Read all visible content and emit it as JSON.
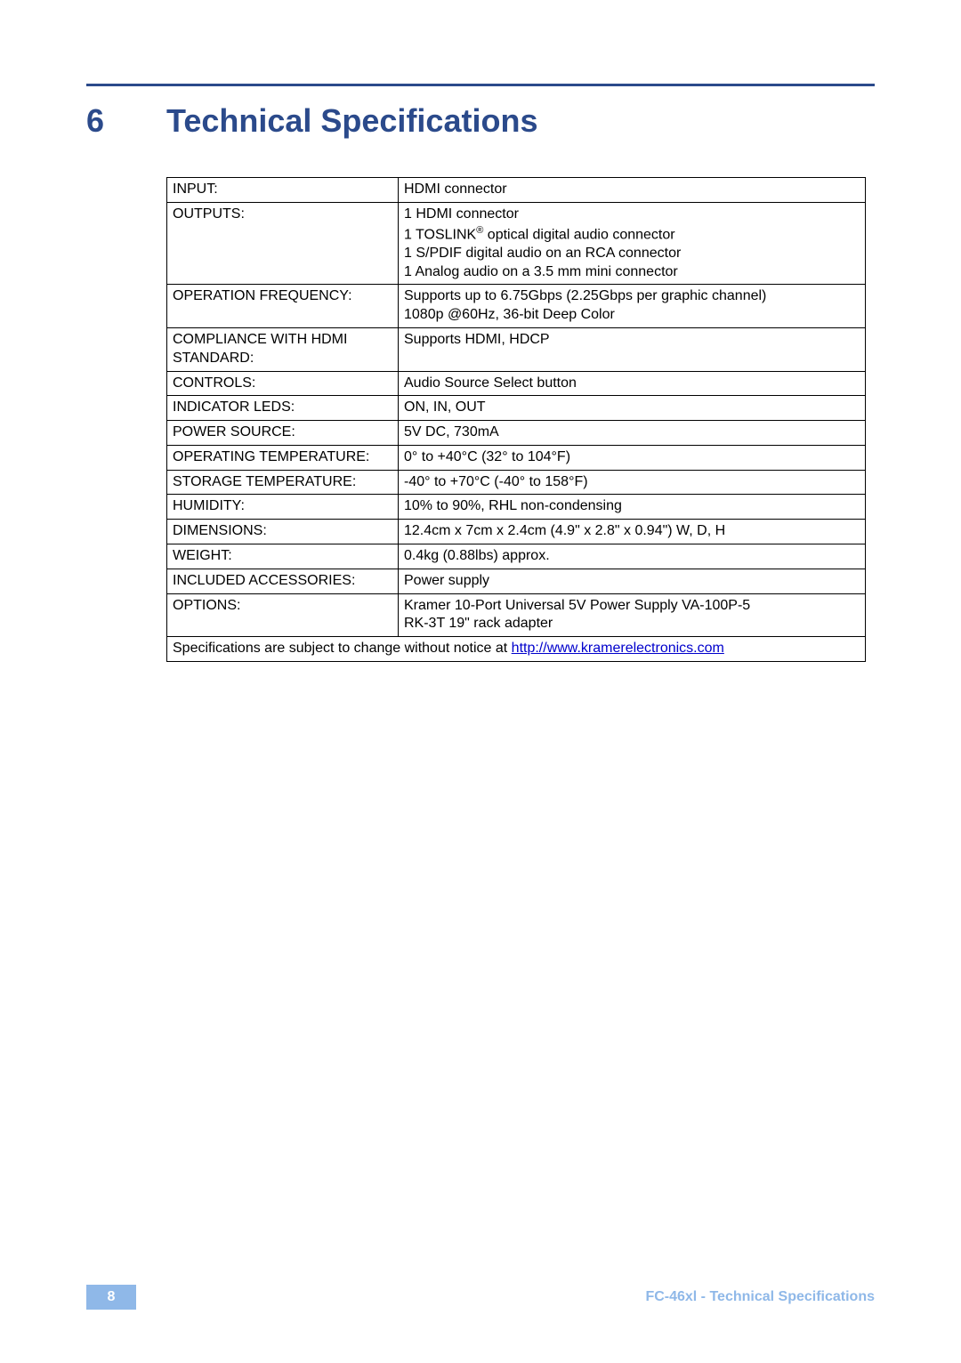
{
  "colors": {
    "rule": "#2b4a8b",
    "heading": "#2b4a8b",
    "link": "#0000cc",
    "badge_bg": "#8fb8e8",
    "footer_text": "#8fb8e8"
  },
  "section": {
    "number": "6",
    "title": "Technical Specifications"
  },
  "table": {
    "rows": [
      {
        "label": "INPUT:",
        "value": "HDMI connector"
      },
      {
        "label": "OUTPUTS:",
        "value_lines": [
          "1 HDMI connector",
          "1 TOSLINK<sup>®</sup> optical digital audio connector",
          "1 S/PDIF digital audio on an RCA connector",
          "1 Analog audio on a 3.5 mm mini connector"
        ]
      },
      {
        "label": "OPERATION FREQUENCY:",
        "value_lines": [
          "Supports up to 6.75Gbps (2.25Gbps per graphic channel)",
          "1080p @60Hz, 36-bit Deep Color"
        ]
      },
      {
        "label": "COMPLIANCE WITH HDMI STANDARD:",
        "value": "Supports HDMI, HDCP"
      },
      {
        "label": "CONTROLS:",
        "value": "Audio Source Select button"
      },
      {
        "label": "INDICATOR LEDS:",
        "value": "ON, IN, OUT"
      },
      {
        "label": "POWER SOURCE:",
        "value": "5V DC, 730mA"
      },
      {
        "label": "OPERATING TEMPERATURE:",
        "value": "0° to +40°C (32° to 104°F)"
      },
      {
        "label": "STORAGE TEMPERATURE:",
        "value": "-40° to +70°C (-40° to 158°F)"
      },
      {
        "label": "HUMIDITY:",
        "value": "10% to 90%, RHL non-condensing"
      },
      {
        "label": "DIMENSIONS:",
        "value": "12.4cm x 7cm x 2.4cm (4.9\" x 2.8\" x 0.94\") W, D, H"
      },
      {
        "label": "WEIGHT:",
        "value": "0.4kg (0.88lbs) approx."
      },
      {
        "label": "INCLUDED ACCESSORIES:",
        "value": "Power supply"
      },
      {
        "label": "OPTIONS:",
        "value_lines": [
          "Kramer 10-Port Universal 5V Power Supply VA-100P-5",
          "RK-3T 19\" rack adapter"
        ]
      }
    ],
    "footnote_prefix": "Specifications are subject to change without notice  at ",
    "footnote_link_text": "http://www.kramerelectronics.com"
  },
  "footer": {
    "page_number": "8",
    "text": "FC-46xl - Technical Specifications"
  }
}
